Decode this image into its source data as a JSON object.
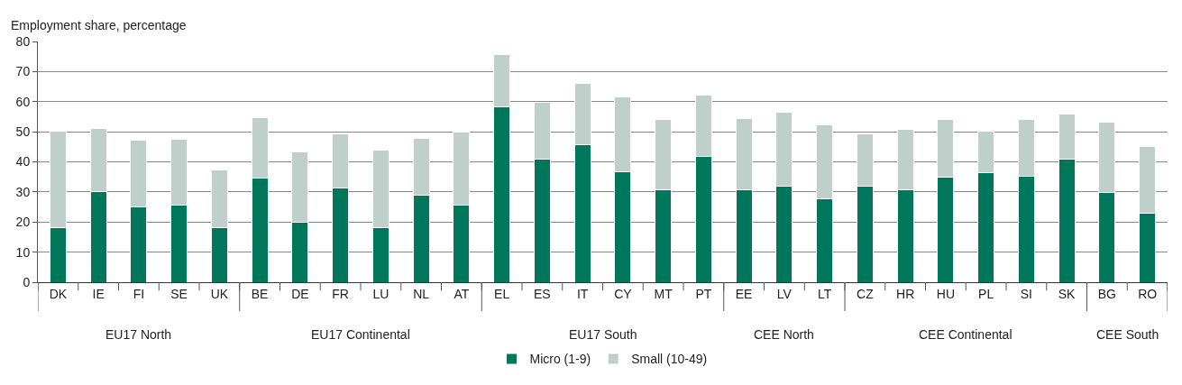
{
  "chart_data": {
    "type": "bar",
    "stacked": true,
    "ylabel": "Employment share, percentage",
    "categories": [
      "DK",
      "IE",
      "FI",
      "SE",
      "UK",
      "BE",
      "DE",
      "FR",
      "LU",
      "NL",
      "AT",
      "EL",
      "ES",
      "IT",
      "CY",
      "MT",
      "PT",
      "EE",
      "LV",
      "LT",
      "CZ",
      "HR",
      "HU",
      "PL",
      "SI",
      "SK",
      "BG",
      "RO"
    ],
    "series": [
      {
        "name": "Micro (1-9)",
        "color": "#00765a",
        "values": [
          18,
          30,
          25,
          25.5,
          18,
          34.5,
          20,
          31.3,
          18.2,
          29,
          25.5,
          58.3,
          41,
          45.7,
          36.7,
          30.6,
          41.7,
          30.6,
          32,
          27.8,
          31.8,
          30.7,
          34.8,
          36.3,
          35.3,
          41,
          29.8,
          23
        ]
      },
      {
        "name": "Small (10-49)",
        "color": "#bfcfc9",
        "values": [
          32.2,
          21.2,
          22.2,
          22,
          19.3,
          20.2,
          23.3,
          17.9,
          25.8,
          18.9,
          24.3,
          17.3,
          18.8,
          20.4,
          25,
          23.4,
          20.5,
          23.9,
          24.6,
          24.6,
          17.6,
          20.1,
          19.2,
          14,
          18.7,
          14.8,
          23.3,
          22.1
        ]
      }
    ],
    "annotations": [
      "EU17 North",
      "EU17 Continental",
      "EU17 South",
      "CEE North",
      "CEE Continental",
      "CEE South"
    ],
    "ylim": [
      0,
      80
    ],
    "yticks": [
      0,
      10,
      20,
      30,
      40,
      50,
      60,
      70,
      80
    ],
    "grid": "y",
    "legend": "bottom"
  }
}
